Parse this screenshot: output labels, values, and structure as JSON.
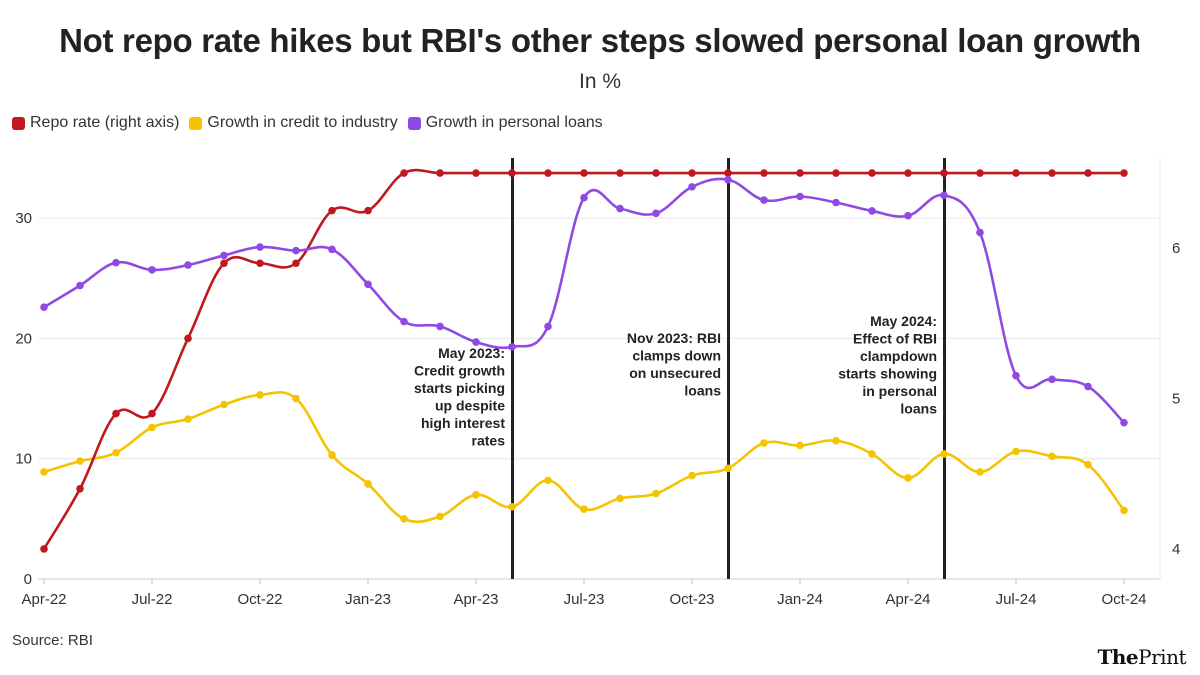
{
  "title": "Not repo rate hikes but RBI's other steps slowed personal loan growth",
  "subtitle": "In %",
  "source": "Source: RBI",
  "brand": {
    "the": "The",
    "print": "Print"
  },
  "colors": {
    "repo": "#c0181f",
    "industry": "#f5c400",
    "personal": "#9149e3",
    "grid": "#e6e6e6",
    "vline": "#222222"
  },
  "chart_data": {
    "type": "line",
    "categories": [
      "Apr-22",
      "May-22",
      "Jun-22",
      "Jul-22",
      "Aug-22",
      "Sep-22",
      "Oct-22",
      "Nov-22",
      "Dec-22",
      "Jan-23",
      "Feb-23",
      "Mar-23",
      "Apr-23",
      "May-23",
      "Jun-23",
      "Jul-23",
      "Aug-23",
      "Sep-23",
      "Oct-23",
      "Nov-23",
      "Dec-23",
      "Jan-24",
      "Feb-24",
      "Mar-24",
      "Apr-24",
      "May-24",
      "Jun-24",
      "Jul-24",
      "Aug-24",
      "Sep-24",
      "Oct-24"
    ],
    "x_tick_labels": [
      "Apr-22",
      "Jul-22",
      "Oct-22",
      "Jan-23",
      "Apr-23",
      "Jul-23",
      "Oct-23",
      "Jan-24",
      "Apr-24",
      "Jul-24",
      "Oct-24"
    ],
    "x_tick_indices": [
      0,
      3,
      6,
      9,
      12,
      15,
      18,
      21,
      24,
      27,
      30
    ],
    "y_left": {
      "lim": [
        0,
        35
      ],
      "ticks": [
        0,
        10,
        20,
        30
      ]
    },
    "y_right": {
      "lim": [
        3.8,
        6.6
      ],
      "ticks": [
        4,
        5,
        6
      ]
    },
    "grid": true,
    "legend_placement": "top-left",
    "series": [
      {
        "name": "Repo rate (right axis)",
        "color": "#c0181f",
        "axis": "right",
        "values": [
          4.0,
          4.4,
          4.9,
          4.9,
          5.4,
          5.9,
          5.9,
          5.9,
          6.25,
          6.25,
          6.5,
          6.5,
          6.5,
          6.5,
          6.5,
          6.5,
          6.5,
          6.5,
          6.5,
          6.5,
          6.5,
          6.5,
          6.5,
          6.5,
          6.5,
          6.5,
          6.5,
          6.5,
          6.5,
          6.5,
          6.5
        ]
      },
      {
        "name": "Growth in credit to industry",
        "color": "#f5c400",
        "axis": "left",
        "values": [
          8.9,
          9.8,
          10.5,
          12.6,
          13.3,
          14.5,
          15.3,
          15.0,
          10.3,
          7.9,
          5.0,
          5.2,
          7.0,
          6.0,
          8.2,
          5.8,
          6.7,
          7.1,
          8.6,
          9.2,
          11.3,
          11.1,
          11.5,
          10.4,
          8.4,
          10.4,
          8.9,
          10.6,
          10.2,
          9.5,
          5.7
        ]
      },
      {
        "name": "Growth in personal loans",
        "color": "#9149e3",
        "axis": "left",
        "values": [
          22.6,
          24.4,
          26.3,
          25.7,
          26.1,
          26.9,
          27.6,
          27.3,
          27.4,
          24.5,
          21.4,
          21.0,
          19.7,
          19.3,
          21.0,
          31.7,
          30.8,
          30.4,
          32.6,
          33.2,
          31.5,
          31.8,
          31.3,
          30.6,
          30.2,
          31.9,
          28.8,
          16.9,
          16.6,
          16.0,
          13.0
        ]
      }
    ],
    "annotations": [
      {
        "index": 13,
        "lines": [
          "May 2023:",
          "Credit growth",
          "starts picking",
          "up despite",
          "high interest",
          "rates"
        ]
      },
      {
        "index": 19,
        "lines": [
          "Nov 2023: RBI",
          "clamps down",
          "on unsecured",
          "loans"
        ]
      },
      {
        "index": 25,
        "lines": [
          "May 2024:",
          "Effect of RBI",
          "clampdown",
          "starts showing",
          "in personal",
          "loans"
        ]
      }
    ]
  }
}
